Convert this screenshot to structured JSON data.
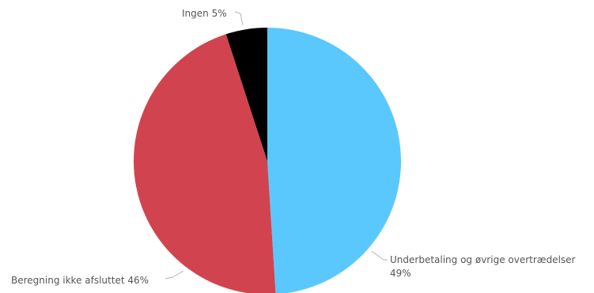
{
  "chart_data": {
    "type": "pie",
    "slices": [
      {
        "label": "Underbetaling og øvrige overtrædelser",
        "value": 49,
        "value_label": "49%",
        "color": "#5bc8fd"
      },
      {
        "label": "Beregning ikke afsluttet",
        "value": 46,
        "value_label": "46%",
        "color": "#d1444f"
      },
      {
        "label": "Ingen",
        "value": 5,
        "value_label": "5%",
        "color": "#000000"
      }
    ],
    "title": "",
    "legend": "none"
  }
}
